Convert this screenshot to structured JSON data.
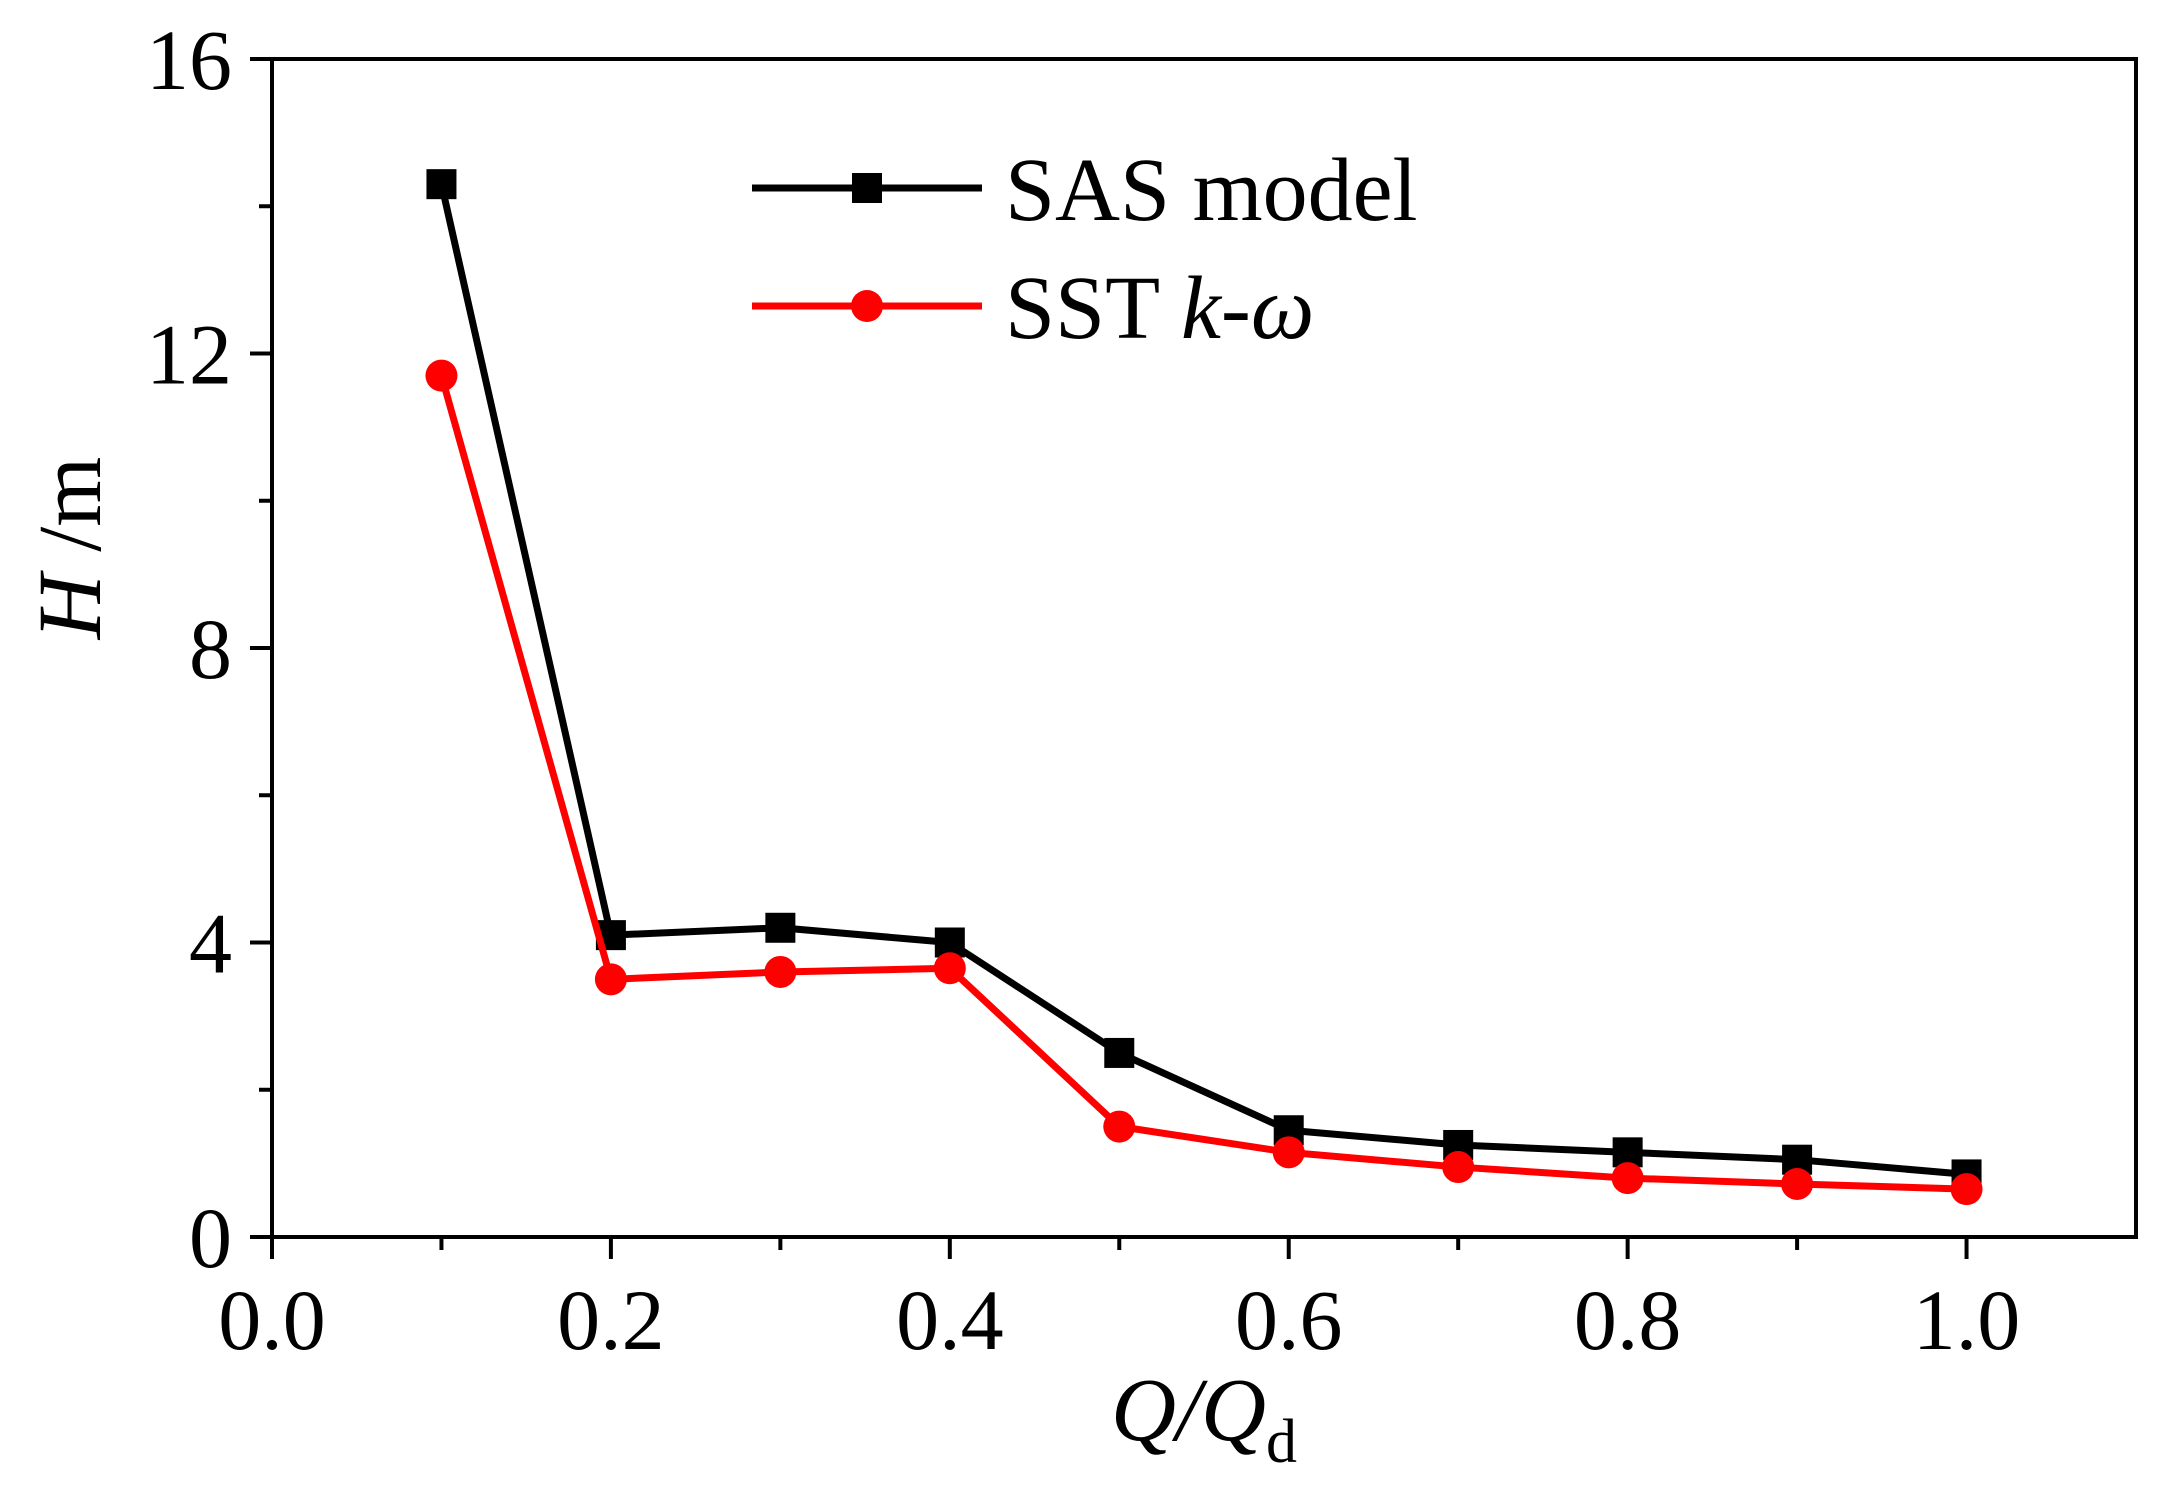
{
  "chart_data": {
    "type": "line",
    "title": "",
    "xlabel": {
      "main": "Q/Q",
      "sub": "d"
    },
    "ylabel": {
      "main": "H",
      "unit": " /m"
    },
    "xlim": [
      0.0,
      1.1
    ],
    "ylim": [
      0,
      16
    ],
    "x_major_ticks": [
      0.0,
      0.2,
      0.4,
      0.6,
      0.8,
      1.0
    ],
    "x_minor_ticks": [
      0.1,
      0.3,
      0.5,
      0.7,
      0.9
    ],
    "x_tick_labels": [
      "0.0",
      "0.2",
      "0.4",
      "0.6",
      "0.8",
      "1.0"
    ],
    "y_major_ticks": [
      0,
      4,
      8,
      12,
      16
    ],
    "y_minor_ticks": [
      2,
      6,
      10,
      14
    ],
    "y_tick_labels": [
      "0",
      "4",
      "8",
      "12",
      "16"
    ],
    "grid": false,
    "legend_position": "top-center",
    "x": [
      0.1,
      0.2,
      0.3,
      0.4,
      0.5,
      0.6,
      0.7,
      0.8,
      0.9,
      1.0
    ],
    "series": [
      {
        "name": "SAS model",
        "name_parts": [
          {
            "text": "SAS model",
            "italic": false
          }
        ],
        "color": "#000000",
        "marker": "square",
        "values": [
          14.3,
          4.1,
          4.2,
          4.0,
          2.5,
          1.45,
          1.25,
          1.15,
          1.05,
          0.85
        ]
      },
      {
        "name": "SST k-ω",
        "name_parts": [
          {
            "text": "SST ",
            "italic": false
          },
          {
            "text": "k",
            "italic": true
          },
          {
            "text": "-",
            "italic": false
          },
          {
            "text": "ω",
            "italic": true
          }
        ],
        "color": "#ff0000",
        "marker": "circle",
        "values": [
          11.7,
          3.5,
          3.6,
          3.65,
          1.5,
          1.15,
          0.95,
          0.8,
          0.72,
          0.65
        ]
      }
    ]
  }
}
